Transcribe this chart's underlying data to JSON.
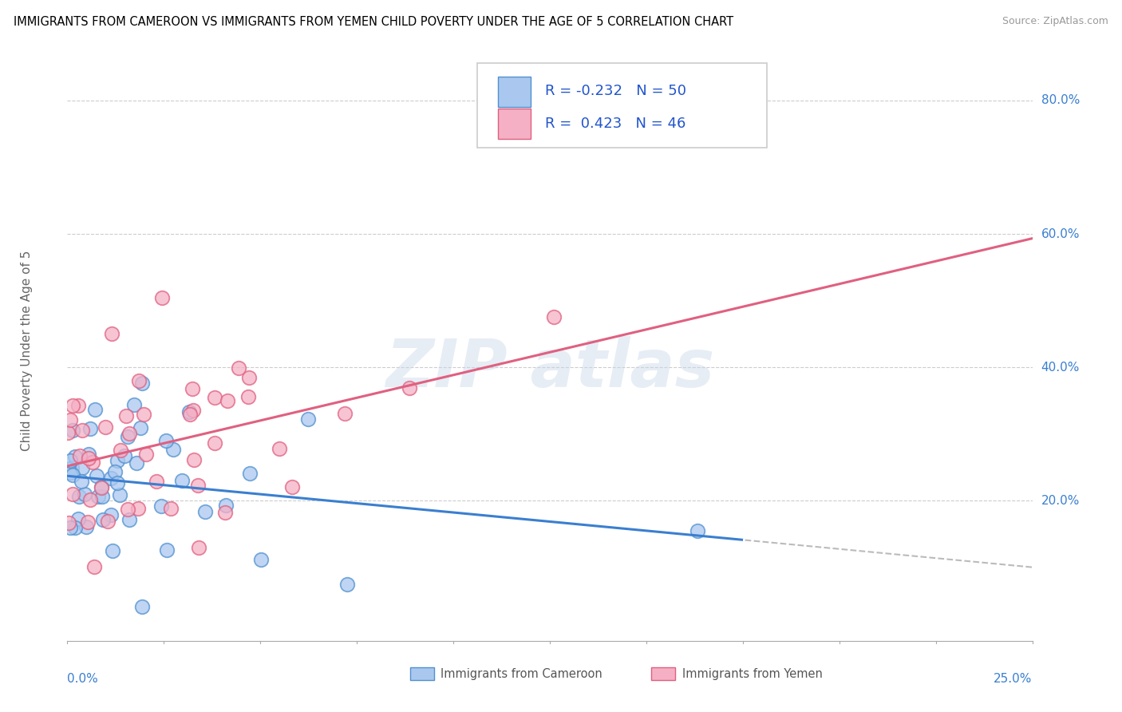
{
  "title": "IMMIGRANTS FROM CAMEROON VS IMMIGRANTS FROM YEMEN CHILD POVERTY UNDER THE AGE OF 5 CORRELATION CHART",
  "source": "Source: ZipAtlas.com",
  "ylabel": "Child Poverty Under the Age of 5",
  "ytick_labels": [
    "20.0%",
    "40.0%",
    "60.0%",
    "80.0%"
  ],
  "ytick_values": [
    0.2,
    0.4,
    0.6,
    0.8
  ],
  "xlim": [
    0.0,
    0.25
  ],
  "ylim": [
    -0.01,
    0.86
  ],
  "blue_fill": "#aac8ef",
  "blue_edge": "#5090d0",
  "pink_fill": "#f5b0c5",
  "pink_edge": "#e06080",
  "blue_line": "#3a7fd0",
  "pink_line": "#e06080",
  "dashed_line": "#bbbbbb",
  "grid_color": "#cccccc",
  "R_cameroon": -0.232,
  "N_cameroon": 50,
  "R_yemen": 0.423,
  "N_yemen": 46,
  "watermark_color": "#c8d8ea",
  "watermark_alpha": 0.45,
  "legend_label_color": "#2255cc",
  "cam_intercept": 0.228,
  "cam_slope": -0.55,
  "yem_intercept": 0.255,
  "yem_slope": 1.42
}
